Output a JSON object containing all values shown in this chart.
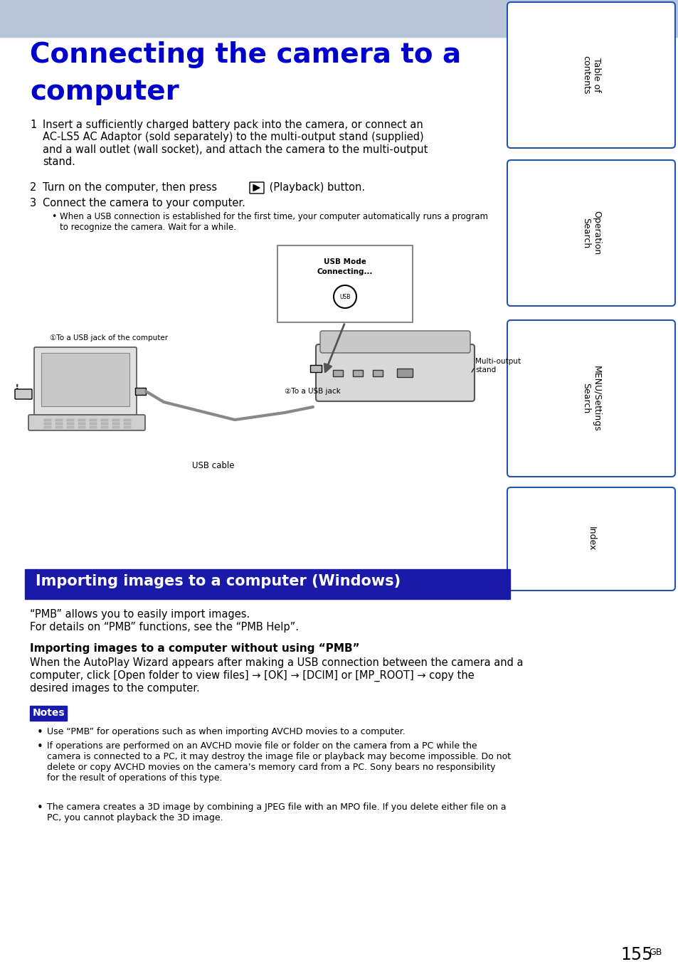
{
  "page_bg": "#ffffff",
  "header_bg": "#b8c4d8",
  "title_text_line1": "Connecting the camera to a",
  "title_text_line2": "computer",
  "title_color": "#0000cc",
  "title_fontsize": 28,
  "body_fontsize": 10.5,
  "small_fontsize": 9.0,
  "section_bg": "#1a1aaa",
  "section_text": "Importing images to a computer (Windows)",
  "section_text_color": "#ffffff",
  "section_fontsize": 15,
  "notes_bg": "#1a1aaa",
  "notes_text": "Notes",
  "notes_text_color": "#ffffff",
  "notes_fontsize": 10,
  "sidebar_bg": "#ffffff",
  "sidebar_border": "#2255aa",
  "sidebar_labels": [
    "Table of\ncontents",
    "Operation\nSearch",
    "MENU/Settings\nSearch",
    "Index"
  ],
  "sidebar_fontsize": 9,
  "step1": "Insert a sufficiently charged battery pack into the camera, or connect an\nAC-LS5 AC Adaptor (sold separately) to the multi-output stand (supplied)\nand a wall outlet (wall socket), and attach the camera to the multi-output\nstand.",
  "step2_prefix": "Turn on the computer, then press",
  "step2_suffix": " (Playback) button.",
  "step3": "Connect the camera to your computer.",
  "bullet_note": "When a USB connection is established for the first time, your computer automatically runs a program\nto recognize the camera. Wait for a while.",
  "pmb_intro1": "“PMB” allows you to easily import images.",
  "pmb_intro2": "For details on “PMB” functions, see the “PMB Help”.",
  "import_heading": "Importing images to a computer without using “PMB”",
  "import_body": "When the AutoPlay Wizard appears after making a USB connection between the camera and a\ncomputer, click [Open folder to view files] → [OK] → [DCIM] or [MP_ROOT] → copy the\ndesired images to the computer.",
  "note1": "Use “PMB” for operations such as when importing AVCHD movies to a computer.",
  "note2": "If operations are performed on an AVCHD movie file or folder on the camera from a PC while the\ncamera is connected to a PC, it may destroy the image file or playback may become impossible. Do not\ndelete or copy AVCHD movies on the camera’s memory card from a PC. Sony bears no responsibility\nfor the result of operations of this type.",
  "note3": "The camera creates a 3D image by combining a JPEG file with an MPO file. If you delete either file on a\nPC, you cannot playback the 3D image.",
  "label1": "①To a USB jack of the computer",
  "label2": "②To a USB jack",
  "label3": "Multi-output\nstand",
  "label4": "USB cable",
  "usb_screen_line1": "USB Mode",
  "usb_screen_line2": "Connecting..."
}
